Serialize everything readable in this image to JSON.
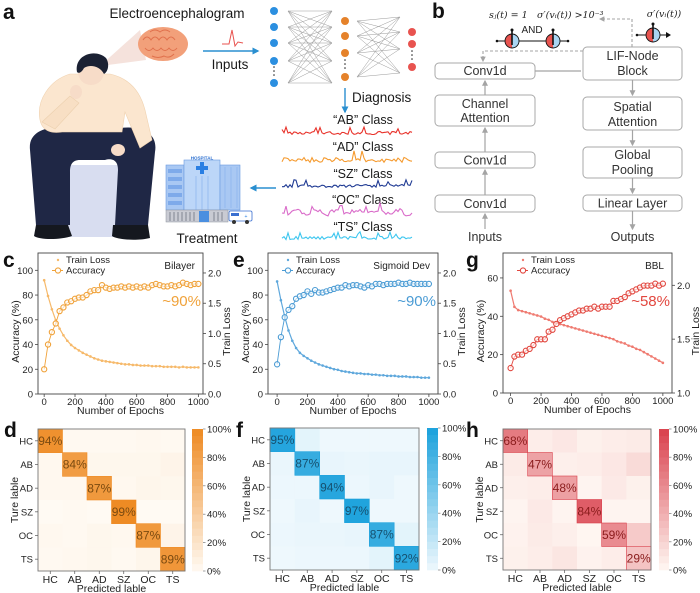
{
  "figure": {
    "panel_labels": {
      "a": "a",
      "b": "b",
      "c": "c",
      "d": "d",
      "e": "e",
      "f": "f",
      "g": "g",
      "h": "h"
    },
    "panel_a": {
      "eeg_title": "Electroencephalogram",
      "inputs_label": "Inputs",
      "diagnosis_label": "Diagnosis",
      "treatment_label": "Treatment",
      "hospital_sign": "HOSPITAL",
      "classes": [
        {
          "label": "“AB” Class",
          "color": "#e8322a"
        },
        {
          "label": "“AD” Class",
          "color": "#f59a2e"
        },
        {
          "label": "“SZ” Class",
          "color": "#1f3a93"
        },
        {
          "label": "“OC” Class",
          "color": "#d96bc9"
        },
        {
          "label": "“TS” Class",
          "color": "#3cc6ef"
        }
      ],
      "network_layer_colors": [
        "#2b8fe0",
        "#e5822a",
        "#e8534f"
      ],
      "arrow_color": "#2a8fd0"
    },
    "panel_b": {
      "formula_spike": "sⱼ(t) = 1",
      "formula_condition": "σ′(vᵢ(t)) >10⁻³",
      "formula_surrogate": "σ′(vᵢ(t))",
      "and_label": "AND",
      "left_column": [
        {
          "lines": [
            "Conv1d"
          ]
        },
        {
          "lines": [
            "Channel",
            "Attention"
          ]
        },
        {
          "lines": [
            "Conv1d"
          ]
        },
        {
          "lines": [
            "Conv1d"
          ]
        }
      ],
      "right_column": [
        {
          "lines": [
            "LIF-Node",
            "Block"
          ]
        },
        {
          "lines": [
            "Spatial",
            "Attention"
          ]
        },
        {
          "lines": [
            "Global",
            "Pooling"
          ]
        },
        {
          "lines": [
            "Linear Layer"
          ]
        }
      ],
      "inputs_label": "Inputs",
      "outputs_label": "Outputs",
      "neuron_colors": {
        "left_half": "#e8534f",
        "right_half": "#a9d5f2"
      }
    }
  },
  "chart_data": [
    {
      "type": "line",
      "panel": "c",
      "title": "Bilayer",
      "annotation": "~90%",
      "xlabel": "Number of Epochs",
      "ylabel": "Accuracy (%)",
      "y2label": "Train Loss",
      "xlim": [
        -40,
        1030
      ],
      "ylim": [
        0,
        114
      ],
      "y2lim": [
        0,
        2.33
      ],
      "xticks": [
        0,
        200,
        400,
        600,
        800,
        1000
      ],
      "yticks": [
        0,
        20,
        40,
        60,
        80,
        100
      ],
      "y2ticks": [
        "0.0",
        "0.5",
        "1.0",
        "1.5",
        "2.0"
      ],
      "grid": false,
      "legend": "top-left",
      "x": [
        0,
        25,
        50,
        75,
        100,
        125,
        150,
        175,
        200,
        225,
        250,
        275,
        300,
        325,
        350,
        375,
        400,
        425,
        450,
        475,
        500,
        525,
        550,
        575,
        600,
        625,
        650,
        675,
        700,
        725,
        750,
        775,
        800,
        825,
        850,
        875,
        900,
        925,
        950,
        975,
        1000
      ],
      "series": [
        {
          "name": "Train Loss",
          "axis": "right",
          "marker": "dot",
          "color": "#f6b96a",
          "values": [
            1.88,
            1.62,
            1.4,
            1.22,
            1.08,
            0.97,
            0.88,
            0.81,
            0.76,
            0.72,
            0.68,
            0.65,
            0.62,
            0.59,
            0.57,
            0.55,
            0.54,
            0.53,
            0.52,
            0.51,
            0.5,
            0.49,
            0.49,
            0.48,
            0.48,
            0.47,
            0.47,
            0.47,
            0.46,
            0.46,
            0.46,
            0.45,
            0.45,
            0.45,
            0.45,
            0.44,
            0.45,
            0.44,
            0.44,
            0.44,
            0.44
          ]
        },
        {
          "name": "Accuracy",
          "axis": "left",
          "marker": "open-circle",
          "color": "#f0a23a",
          "values": [
            20,
            40,
            50,
            57,
            67,
            70,
            74,
            75,
            77,
            78,
            78,
            80,
            83,
            84,
            84,
            88,
            86,
            85,
            86,
            86,
            87,
            86,
            87,
            86,
            87,
            86,
            87,
            86,
            88,
            89,
            88,
            87,
            87,
            88,
            87,
            88,
            90,
            89,
            88,
            89,
            89
          ]
        }
      ]
    },
    {
      "type": "heatmap",
      "panel": "d",
      "xlabel": "Predicted lable",
      "ylabel": "Ture lable",
      "categories": [
        "HC",
        "AB",
        "AD",
        "SZ",
        "OC",
        "TS"
      ],
      "values": [
        [
          94,
          1,
          1,
          1,
          2,
          1
        ],
        [
          2,
          84,
          3,
          3,
          3,
          5
        ],
        [
          2,
          2,
          87,
          2,
          4,
          3
        ],
        [
          0,
          1,
          0,
          99,
          0,
          0
        ],
        [
          2,
          1,
          3,
          2,
          87,
          5
        ],
        [
          1,
          2,
          3,
          1,
          4,
          89
        ]
      ],
      "diagonal_labels": [
        "94%",
        "84%",
        "87%",
        "99%",
        "87%",
        "89%"
      ],
      "colorbar": {
        "range": [
          0,
          100
        ],
        "ticks": [
          "0%",
          "20%",
          "40%",
          "60%",
          "80%",
          "100%"
        ]
      },
      "colormap": [
        "#fffaf3",
        "#ee8a22"
      ],
      "label_color": "#7a4a10"
    },
    {
      "type": "line",
      "panel": "e",
      "title": "Sigmoid Dev",
      "annotation": "~90%",
      "xlabel": "Number of Epochs",
      "ylabel": "Accuracy (%)",
      "y2label": "Train Loss",
      "xlim": [
        -60,
        1060
      ],
      "ylim": [
        0,
        114
      ],
      "y2lim": [
        0,
        2.33
      ],
      "xticks": [
        0,
        200,
        400,
        600,
        800,
        1000
      ],
      "yticks": [
        0,
        20,
        40,
        60,
        80,
        100
      ],
      "y2ticks": [
        "0.0",
        "0.5",
        "1.0",
        "1.5",
        "2.0"
      ],
      "grid": false,
      "legend": "top-left",
      "x": [
        0,
        25,
        50,
        75,
        100,
        125,
        150,
        175,
        200,
        225,
        250,
        275,
        300,
        325,
        350,
        375,
        400,
        425,
        450,
        475,
        500,
        525,
        550,
        575,
        600,
        625,
        650,
        675,
        700,
        725,
        750,
        775,
        800,
        825,
        850,
        875,
        900,
        925,
        950,
        975,
        1000
      ],
      "series": [
        {
          "name": "Train Loss",
          "axis": "right",
          "marker": "dot",
          "color": "#5fa8dc",
          "values": [
            1.86,
            1.55,
            1.28,
            1.05,
            0.88,
            0.76,
            0.68,
            0.63,
            0.59,
            0.55,
            0.52,
            0.49,
            0.47,
            0.45,
            0.43,
            0.41,
            0.4,
            0.38,
            0.37,
            0.36,
            0.35,
            0.34,
            0.34,
            0.33,
            0.33,
            0.32,
            0.32,
            0.31,
            0.31,
            0.3,
            0.3,
            0.3,
            0.29,
            0.29,
            0.29,
            0.28,
            0.28,
            0.28,
            0.27,
            0.27,
            0.27
          ]
        },
        {
          "name": "Accuracy",
          "axis": "left",
          "marker": "open-circle",
          "color": "#4a9bd4",
          "values": [
            24,
            46,
            62,
            68,
            71,
            77,
            79,
            80,
            83,
            81,
            84,
            82,
            82,
            83,
            84,
            85,
            86,
            86,
            88,
            87,
            88,
            88,
            87,
            86,
            88,
            87,
            89,
            89,
            88,
            89,
            89,
            89,
            90,
            89,
            89,
            90,
            89,
            89,
            89,
            89,
            89
          ]
        }
      ]
    },
    {
      "type": "heatmap",
      "panel": "f",
      "xlabel": "Predicted lable",
      "ylabel": "Ture lable",
      "categories": [
        "HC",
        "AB",
        "AD",
        "SZ",
        "OC",
        "TS"
      ],
      "values": [
        [
          95,
          5,
          0,
          0,
          0,
          0
        ],
        [
          2,
          87,
          3,
          2,
          3,
          3
        ],
        [
          1,
          1,
          94,
          1,
          3,
          0
        ],
        [
          0,
          3,
          0,
          97,
          0,
          0
        ],
        [
          1,
          2,
          2,
          3,
          87,
          5
        ],
        [
          0,
          1,
          1,
          1,
          5,
          92
        ]
      ],
      "diagonal_labels": [
        "95%",
        "87%",
        "94%",
        "97%",
        "87%",
        "92%"
      ],
      "colorbar": {
        "range": [
          0,
          100
        ],
        "ticks": [
          "0%",
          "20%",
          "40%",
          "60%",
          "80%",
          "100%"
        ]
      },
      "colormap": [
        "#eef8fd",
        "#1aa1dc"
      ],
      "label_color": "#16506f"
    },
    {
      "type": "line",
      "panel": "g",
      "title": "BBL",
      "annotation": "~58%",
      "xlabel": "Number of Epochs",
      "ylabel": "Accuracy (%)",
      "y2label": "Train Loss",
      "xlim": [
        -50,
        1060
      ],
      "ylim": [
        0,
        73
      ],
      "y2lim": [
        1.0,
        2.3
      ],
      "xticks": [
        0,
        200,
        400,
        600,
        800,
        1000
      ],
      "yticks": [
        0,
        20,
        40,
        60
      ],
      "y2ticks": [
        "1.0",
        "1.5",
        "2.0"
      ],
      "grid": false,
      "legend": "top-left",
      "x": [
        0,
        25,
        50,
        75,
        100,
        125,
        150,
        175,
        200,
        225,
        250,
        275,
        300,
        325,
        350,
        375,
        400,
        425,
        450,
        475,
        500,
        525,
        550,
        575,
        600,
        625,
        650,
        675,
        700,
        725,
        750,
        775,
        800,
        825,
        850,
        875,
        900,
        925,
        950,
        975,
        1000
      ],
      "series": [
        {
          "name": "Train Loss",
          "axis": "right",
          "marker": "dot",
          "color": "#ef7a70",
          "values": [
            1.95,
            1.8,
            1.77,
            1.76,
            1.75,
            1.74,
            1.73,
            1.72,
            1.71,
            1.69,
            1.68,
            1.66,
            1.65,
            1.64,
            1.63,
            1.62,
            1.61,
            1.6,
            1.59,
            1.58,
            1.57,
            1.56,
            1.55,
            1.54,
            1.53,
            1.52,
            1.51,
            1.5,
            1.48,
            1.47,
            1.46,
            1.44,
            1.43,
            1.41,
            1.4,
            1.38,
            1.36,
            1.34,
            1.32,
            1.3,
            1.28
          ]
        },
        {
          "name": "Accuracy",
          "axis": "left",
          "marker": "open-circle",
          "color": "#e2473f",
          "values": [
            13,
            19,
            20,
            20,
            22,
            23,
            25,
            28,
            28,
            28,
            32,
            33,
            36,
            38,
            39,
            40,
            41,
            42,
            43,
            43,
            44,
            44,
            45,
            44,
            45,
            45,
            45,
            48,
            48,
            49,
            50,
            52,
            53,
            54,
            55,
            56,
            56,
            56,
            57,
            56,
            57
          ]
        }
      ]
    },
    {
      "type": "heatmap",
      "panel": "h",
      "xlabel": "Predicted lable",
      "ylabel": "Ture lable",
      "categories": [
        "HC",
        "AB",
        "AD",
        "SZ",
        "OC",
        "TS"
      ],
      "values": [
        [
          68,
          6,
          9,
          4,
          6,
          7
        ],
        [
          7,
          47,
          5,
          6,
          9,
          16
        ],
        [
          5,
          6,
          48,
          2,
          8,
          4
        ],
        [
          2,
          8,
          2,
          84,
          2,
          2
        ],
        [
          3,
          7,
          5,
          1,
          59,
          25
        ],
        [
          4,
          6,
          10,
          3,
          6,
          29
        ]
      ],
      "diagonal_labels": [
        "68%",
        "47%",
        "48%",
        "84%",
        "59%",
        "29%"
      ],
      "colorbar": {
        "range": [
          0,
          100
        ],
        "ticks": [
          "0%",
          "20%",
          "40%",
          "60%",
          "80%",
          "100%"
        ]
      },
      "colormap": [
        "#fff8f3",
        "#d9404c"
      ],
      "label_color": "#8a1c1c"
    }
  ]
}
